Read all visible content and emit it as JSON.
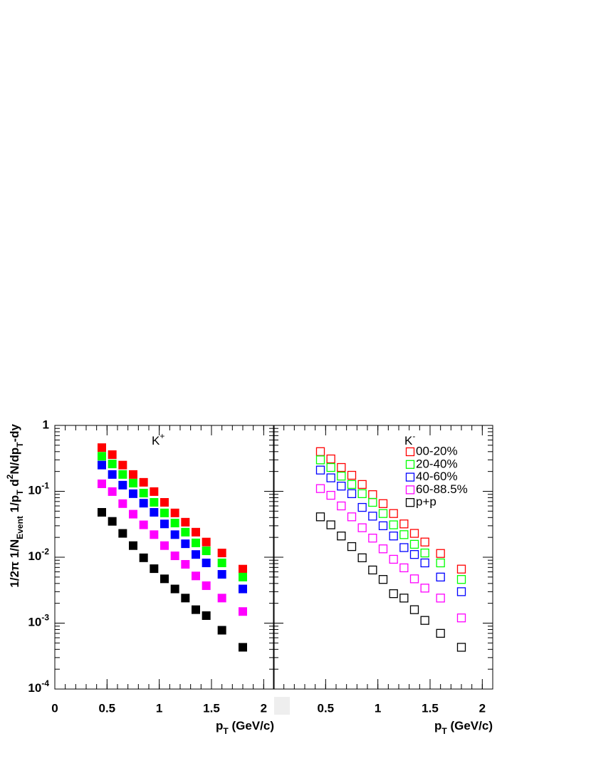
{
  "chart_data": [
    {
      "type": "scatter",
      "marker": "filled",
      "panel_label": "K",
      "panel_label_sup": "+",
      "x": [
        0.45,
        0.55,
        0.65,
        0.75,
        0.85,
        0.95,
        1.05,
        1.15,
        1.25,
        1.35,
        1.45,
        1.6,
        1.8
      ],
      "series": [
        {
          "color": "#ff0000",
          "values": [
            0.46,
            0.36,
            0.25,
            0.18,
            0.137,
            0.099,
            0.068,
            0.047,
            0.034,
            0.024,
            0.017,
            0.0116,
            0.0066
          ]
        },
        {
          "color": "#00ff00",
          "values": [
            0.34,
            0.26,
            0.18,
            0.133,
            0.094,
            0.068,
            0.047,
            0.033,
            0.024,
            0.0165,
            0.0125,
            0.0082,
            0.005
          ]
        },
        {
          "color": "#0000ff",
          "values": [
            0.25,
            0.18,
            0.124,
            0.092,
            0.066,
            0.048,
            0.032,
            0.022,
            0.016,
            0.011,
            0.0082,
            0.0055,
            0.0033
          ]
        },
        {
          "color": "#ff00ff",
          "values": [
            0.13,
            0.099,
            0.065,
            0.045,
            0.031,
            0.022,
            0.015,
            0.0105,
            0.0078,
            0.0052,
            0.0037,
            0.0024,
            0.0015
          ]
        },
        {
          "color": "#000000",
          "values": [
            0.048,
            0.035,
            0.023,
            0.015,
            0.0098,
            0.0067,
            0.0047,
            0.0033,
            0.0024,
            0.0016,
            0.0013,
            0.00078,
            0.00043
          ]
        }
      ],
      "xlim": [
        0,
        2.1
      ],
      "xticks": [
        0,
        0.5,
        1,
        1.5,
        2
      ],
      "ylim": [
        0.0001,
        1
      ],
      "log_y": true,
      "yticks": [
        {
          "value": 0.0001,
          "label": "10",
          "exp": "-4"
        },
        {
          "value": 0.001,
          "label": "10",
          "exp": "-3"
        },
        {
          "value": 0.01,
          "label": "10",
          "exp": "-2"
        },
        {
          "value": 0.1,
          "label": "10",
          "exp": "-1"
        },
        1
      ],
      "ylabel_parts": [
        "1/2π 1/N",
        "Event",
        " 1/p",
        "T",
        " d",
        "2",
        "N/dp",
        "T",
        "-dy"
      ],
      "ylabel_styles": [
        "n",
        "sub",
        "n",
        "sub",
        "n",
        "sup",
        "n",
        "sub",
        "n"
      ],
      "xlabel_parts": [
        "p",
        "T",
        " (GeV/c)"
      ],
      "xlabel_styles": [
        "n",
        "sub",
        "n"
      ]
    },
    {
      "type": "scatter",
      "marker": "open",
      "panel_label": "K",
      "panel_label_sup": "-",
      "legend": "top-right",
      "x": [
        0.45,
        0.55,
        0.65,
        0.75,
        0.85,
        0.95,
        1.05,
        1.15,
        1.25,
        1.35,
        1.45,
        1.6,
        1.8
      ],
      "series": [
        {
          "name": "00-20%",
          "color": "#ff0000",
          "values": [
            0.4,
            0.31,
            0.23,
            0.175,
            0.127,
            0.089,
            0.065,
            0.046,
            0.032,
            0.023,
            0.017,
            0.0114,
            0.0066
          ]
        },
        {
          "name": "20-40%",
          "color": "#00ff00",
          "values": [
            0.3,
            0.23,
            0.17,
            0.127,
            0.092,
            0.068,
            0.046,
            0.031,
            0.022,
            0.0157,
            0.0116,
            0.0082,
            0.0046
          ]
        },
        {
          "name": "40-60%",
          "color": "#0000ff",
          "values": [
            0.21,
            0.16,
            0.12,
            0.092,
            0.057,
            0.042,
            0.03,
            0.021,
            0.014,
            0.011,
            0.0082,
            0.005,
            0.003
          ]
        },
        {
          "name": "60-88.5%",
          "color": "#ff00ff",
          "values": [
            0.11,
            0.087,
            0.06,
            0.041,
            0.028,
            0.0195,
            0.0134,
            0.0093,
            0.0069,
            0.0047,
            0.0034,
            0.0024,
            0.0012
          ]
        },
        {
          "name": "p+p",
          "color": "#000000",
          "values": [
            0.041,
            0.031,
            0.021,
            0.0145,
            0.0098,
            0.0064,
            0.0046,
            0.0028,
            0.0024,
            0.0016,
            0.0011,
            0.0007,
            0.00043
          ]
        }
      ],
      "xlim": [
        0,
        2.1
      ],
      "xticks": [
        0.5,
        1,
        1.5,
        2
      ],
      "ylim": [
        0.0001,
        1
      ],
      "log_y": true,
      "xlabel_parts": [
        "p",
        "T",
        " (GeV/c)"
      ],
      "xlabel_styles": [
        "n",
        "sub",
        "n"
      ]
    }
  ]
}
